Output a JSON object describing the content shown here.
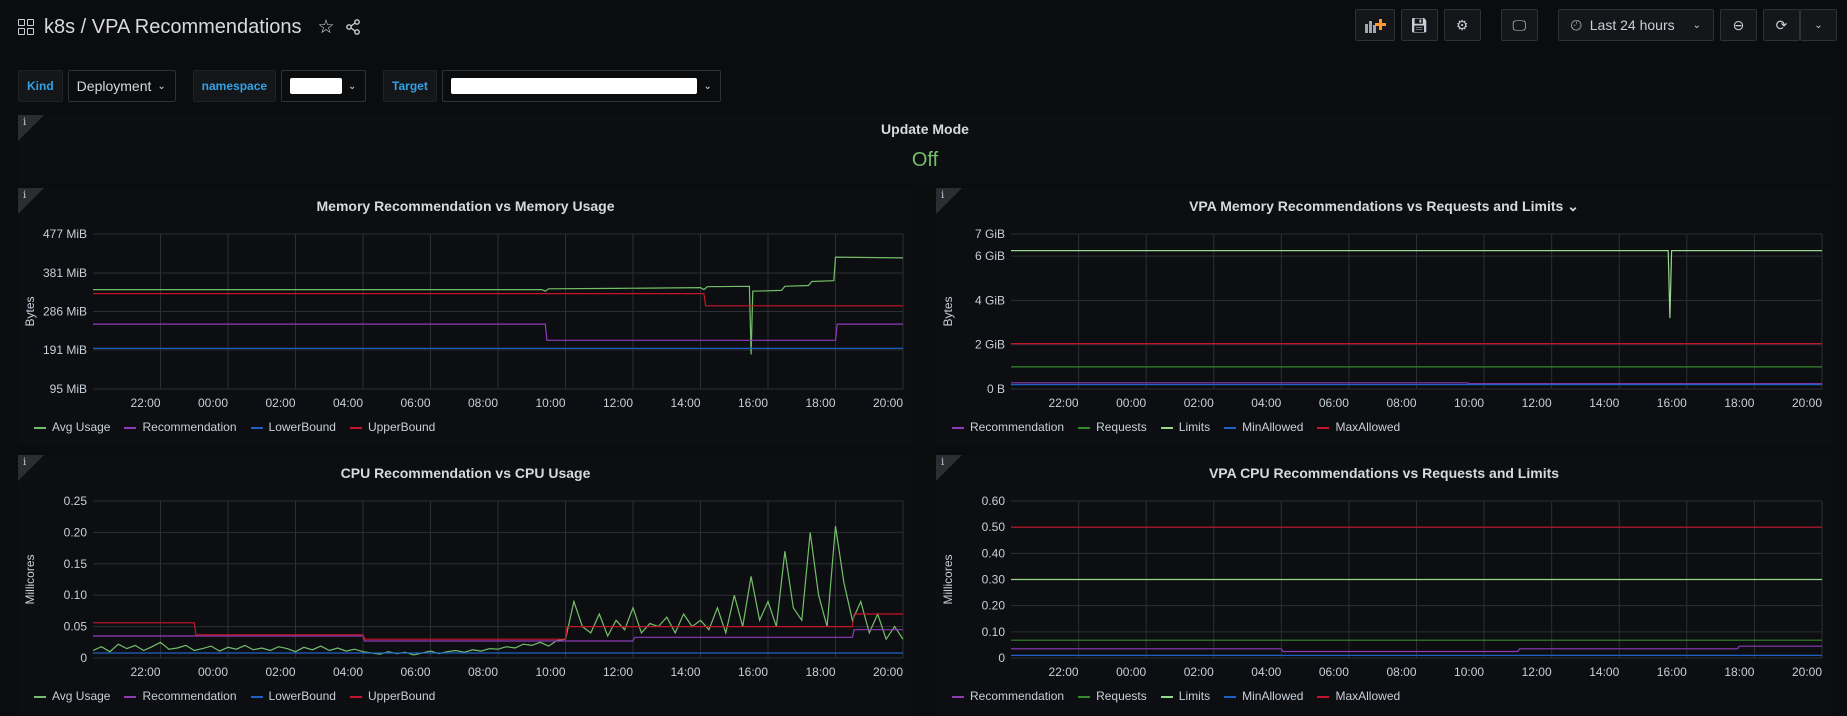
{
  "header": {
    "title": "k8s / VPA Recommendations",
    "time_range": "Last 24 hours"
  },
  "variables": [
    {
      "label": "Kind",
      "value": "Deployment"
    },
    {
      "label": "namespace"
    },
    {
      "label": "Target"
    }
  ],
  "update_mode": {
    "title": "Update Mode",
    "value": "Off",
    "value_color": "#73bf69"
  },
  "colors": {
    "Avg Usage": "#73bf69",
    "Recommendation": "#8f3bb8",
    "LowerBound": "#1f60c4",
    "UpperBound": "#c4162a",
    "Requests": "#37872d",
    "Limits": "#96d98d",
    "MinAllowed": "#1f60c4",
    "MaxAllowed": "#c4162a"
  },
  "chart_data": [
    {
      "type": "line",
      "title": "Memory Recommendation vs Memory Usage",
      "ylabel": "Bytes",
      "xlim": [
        0,
        24
      ],
      "ylim": [
        95,
        477
      ],
      "x_ticks": [
        "22:00",
        "00:00",
        "02:00",
        "04:00",
        "06:00",
        "08:00",
        "10:00",
        "12:00",
        "14:00",
        "16:00",
        "18:00",
        "20:00"
      ],
      "y_ticks": [
        {
          "v": 95,
          "label": "95 MiB"
        },
        {
          "v": 191,
          "label": "191 MiB"
        },
        {
          "v": 286,
          "label": "286 MiB"
        },
        {
          "v": 381,
          "label": "381 MiB"
        },
        {
          "v": 477,
          "label": "477 MiB"
        }
      ],
      "series": [
        {
          "name": "Avg Usage",
          "points": [
            [
              0,
              340
            ],
            [
              13.3,
              340
            ],
            [
              13.4,
              336
            ],
            [
              13.5,
              342
            ],
            [
              15.5,
              343
            ],
            [
              18,
              345
            ],
            [
              18.1,
              340
            ],
            [
              18.2,
              347
            ],
            [
              19.45,
              348
            ],
            [
              19.5,
              180
            ],
            [
              19.55,
              336
            ],
            [
              20.4,
              338
            ],
            [
              20.5,
              348
            ],
            [
              21.2,
              350
            ],
            [
              21.3,
              360
            ],
            [
              21.95,
              362
            ],
            [
              22,
              420
            ],
            [
              24,
              418
            ]
          ]
        },
        {
          "name": "Recommendation",
          "points": [
            [
              0,
              255
            ],
            [
              13.4,
              255
            ],
            [
              13.45,
              215
            ],
            [
              22,
              215
            ],
            [
              22.05,
              255
            ],
            [
              24,
              255
            ]
          ]
        },
        {
          "name": "LowerBound",
          "points": [
            [
              0,
              195
            ],
            [
              24,
              195
            ]
          ]
        },
        {
          "name": "UpperBound",
          "points": [
            [
              0,
              330
            ],
            [
              18.1,
              330
            ],
            [
              18.15,
              300
            ],
            [
              24,
              300
            ]
          ]
        }
      ]
    },
    {
      "type": "line",
      "title": "VPA Memory Recommendations vs Requests and Limits",
      "ylabel": "Bytes",
      "xlim": [
        0,
        24
      ],
      "ylim": [
        0,
        7
      ],
      "x_ticks": [
        "22:00",
        "00:00",
        "02:00",
        "04:00",
        "06:00",
        "08:00",
        "10:00",
        "12:00",
        "14:00",
        "16:00",
        "18:00",
        "20:00"
      ],
      "y_ticks": [
        {
          "v": 0,
          "label": "0 B"
        },
        {
          "v": 2,
          "label": "2 GiB"
        },
        {
          "v": 4,
          "label": "4 GiB"
        },
        {
          "v": 6,
          "label": "6 GiB"
        },
        {
          "v": 7,
          "label": "7 GiB"
        }
      ],
      "series": [
        {
          "name": "Recommendation",
          "points": [
            [
              0,
              0.28
            ],
            [
              13.5,
              0.28
            ],
            [
              13.55,
              0.24
            ],
            [
              24,
              0.24
            ]
          ]
        },
        {
          "name": "Requests",
          "points": [
            [
              0,
              1.0
            ],
            [
              24,
              1.0
            ]
          ]
        },
        {
          "name": "Limits",
          "points": [
            [
              0,
              6.25
            ],
            [
              19.45,
              6.25
            ],
            [
              19.5,
              3.2
            ],
            [
              19.55,
              6.25
            ],
            [
              24,
              6.25
            ]
          ]
        },
        {
          "name": "MinAllowed",
          "points": [
            [
              0,
              0.2
            ],
            [
              24,
              0.2
            ]
          ]
        },
        {
          "name": "MaxAllowed",
          "points": [
            [
              0,
              2.05
            ],
            [
              24,
              2.05
            ]
          ]
        }
      ]
    },
    {
      "type": "line",
      "title": "CPU Recommendation vs CPU Usage",
      "ylabel": "Millicores",
      "xlim": [
        0,
        24
      ],
      "ylim": [
        0,
        0.25
      ],
      "x_ticks": [
        "22:00",
        "00:00",
        "02:00",
        "04:00",
        "06:00",
        "08:00",
        "10:00",
        "12:00",
        "14:00",
        "16:00",
        "18:00",
        "20:00"
      ],
      "y_ticks": [
        {
          "v": 0,
          "label": "0"
        },
        {
          "v": 0.05,
          "label": "0.05"
        },
        {
          "v": 0.1,
          "label": "0.10"
        },
        {
          "v": 0.15,
          "label": "0.15"
        },
        {
          "v": 0.2,
          "label": "0.20"
        },
        {
          "v": 0.25,
          "label": "0.25"
        }
      ],
      "series": [
        {
          "name": "Avg Usage",
          "x_start": 0,
          "x_step": 0.25,
          "values": [
            0.012,
            0.018,
            0.01,
            0.022,
            0.015,
            0.02,
            0.012,
            0.018,
            0.025,
            0.014,
            0.016,
            0.02,
            0.012,
            0.015,
            0.019,
            0.011,
            0.017,
            0.014,
            0.02,
            0.013,
            0.016,
            0.012,
            0.018,
            0.015,
            0.01,
            0.017,
            0.013,
            0.019,
            0.012,
            0.016,
            0.011,
            0.014,
            0.01,
            0.008,
            0.006,
            0.01,
            0.007,
            0.009,
            0.005,
            0.008,
            0.011,
            0.007,
            0.01,
            0.012,
            0.009,
            0.013,
            0.011,
            0.015,
            0.014,
            0.018,
            0.016,
            0.022,
            0.02,
            0.025,
            0.019,
            0.028,
            0.03,
            0.09,
            0.05,
            0.04,
            0.07,
            0.035,
            0.06,
            0.045,
            0.08,
            0.04,
            0.055,
            0.05,
            0.065,
            0.04,
            0.07,
            0.05,
            0.06,
            0.045,
            0.08,
            0.04,
            0.1,
            0.05,
            0.13,
            0.06,
            0.09,
            0.05,
            0.17,
            0.08,
            0.06,
            0.2,
            0.1,
            0.05,
            0.21,
            0.12,
            0.06,
            0.09,
            0.04,
            0.07,
            0.03,
            0.05,
            0.03
          ]
        },
        {
          "name": "Recommendation",
          "points": [
            [
              0,
              0.035
            ],
            [
              8,
              0.035
            ],
            [
              8.05,
              0.027
            ],
            [
              16,
              0.027
            ],
            [
              16.05,
              0.033
            ],
            [
              22.5,
              0.033
            ],
            [
              22.55,
              0.045
            ],
            [
              24,
              0.045
            ]
          ]
        },
        {
          "name": "LowerBound",
          "points": [
            [
              0,
              0.008
            ],
            [
              24,
              0.008
            ]
          ]
        },
        {
          "name": "UpperBound",
          "points": [
            [
              0,
              0.056
            ],
            [
              3,
              0.056
            ],
            [
              3.05,
              0.037
            ],
            [
              8,
              0.037
            ],
            [
              8.05,
              0.03
            ],
            [
              14,
              0.03
            ],
            [
              14.05,
              0.05
            ],
            [
              22.5,
              0.05
            ],
            [
              22.55,
              0.07
            ],
            [
              24,
              0.07
            ]
          ]
        }
      ]
    },
    {
      "type": "line",
      "title": "VPA CPU Recommendations vs Requests and Limits",
      "ylabel": "Millicores",
      "xlim": [
        0,
        24
      ],
      "ylim": [
        0,
        0.6
      ],
      "x_ticks": [
        "22:00",
        "00:00",
        "02:00",
        "04:00",
        "06:00",
        "08:00",
        "10:00",
        "12:00",
        "14:00",
        "16:00",
        "18:00",
        "20:00"
      ],
      "y_ticks": [
        {
          "v": 0,
          "label": "0"
        },
        {
          "v": 0.1,
          "label": "0.10"
        },
        {
          "v": 0.2,
          "label": "0.20"
        },
        {
          "v": 0.3,
          "label": "0.30"
        },
        {
          "v": 0.4,
          "label": "0.40"
        },
        {
          "v": 0.5,
          "label": "0.50"
        },
        {
          "v": 0.6,
          "label": "0.60"
        }
      ],
      "series": [
        {
          "name": "Recommendation",
          "points": [
            [
              0,
              0.035
            ],
            [
              8,
              0.035
            ],
            [
              8.05,
              0.025
            ],
            [
              15,
              0.025
            ],
            [
              15.05,
              0.035
            ],
            [
              21.5,
              0.035
            ],
            [
              21.55,
              0.045
            ],
            [
              24,
              0.045
            ]
          ]
        },
        {
          "name": "Requests",
          "points": [
            [
              0,
              0.068
            ],
            [
              24,
              0.068
            ]
          ]
        },
        {
          "name": "Limits",
          "points": [
            [
              0,
              0.3
            ],
            [
              24,
              0.3
            ]
          ]
        },
        {
          "name": "MinAllowed",
          "points": [
            [
              0,
              0.01
            ],
            [
              24,
              0.01
            ]
          ]
        },
        {
          "name": "MaxAllowed",
          "points": [
            [
              0,
              0.5
            ],
            [
              24,
              0.5
            ]
          ]
        }
      ]
    }
  ]
}
